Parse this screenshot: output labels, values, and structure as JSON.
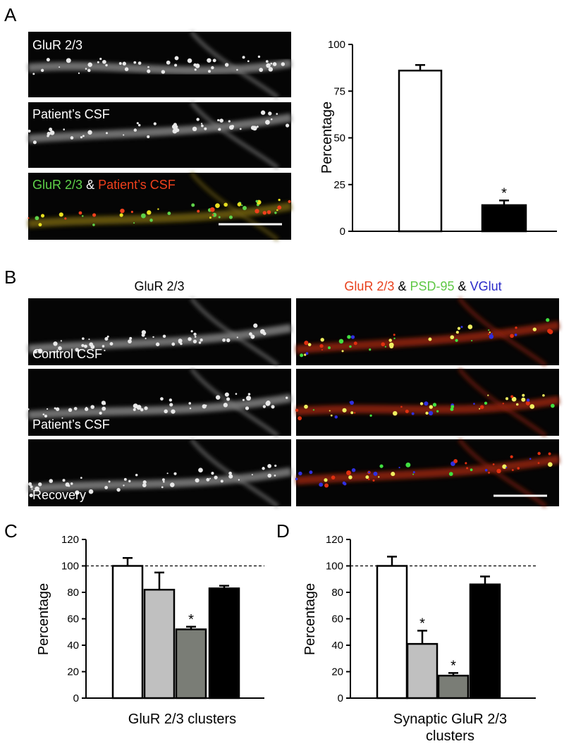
{
  "panel_labels": [
    "A",
    "B",
    "C",
    "D"
  ],
  "panel_a": {
    "images": [
      "GluR 2/3",
      "Patient’s CSF"
    ],
    "merge": [
      "GluR 2/3",
      "&",
      "Patient’s CSF"
    ]
  },
  "panel_b": {
    "left_header": "GluR 2/3",
    "right_header": [
      "GluR 2/3",
      "&",
      "PSD-95",
      "&",
      "VGlut"
    ],
    "rows": [
      "Control CSF",
      "Patient’s CSF",
      "Recovery"
    ]
  },
  "chart_data": [
    {
      "type": "bar",
      "ylabel": "Percentage",
      "categories": [
        null,
        null
      ],
      "values": [
        86,
        14
      ],
      "errors": [
        3,
        2.5
      ],
      "colors": [
        "#ffffff",
        "#000000"
      ],
      "annotations": [
        null,
        "*"
      ],
      "ylim": [
        0,
        100
      ],
      "yticks": [
        0,
        25,
        50,
        75,
        100
      ]
    },
    {
      "type": "bar",
      "ylabel": "Percentage",
      "xlabel": [
        "GluR 2/3 clusters"
      ],
      "categories": [
        null,
        null,
        null,
        null
      ],
      "values": [
        100,
        82,
        52,
        83
      ],
      "errors": [
        6,
        13,
        2,
        2
      ],
      "colors": [
        "#ffffff",
        "#c0c0c0",
        "#7a7d76",
        "#000000"
      ],
      "annotations": [
        null,
        null,
        "*",
        null
      ],
      "reference_line": 100,
      "ylim": [
        0,
        120
      ],
      "yticks": [
        0,
        20,
        40,
        60,
        80,
        100,
        120
      ]
    },
    {
      "type": "bar",
      "ylabel": "Percentage",
      "xlabel": [
        "Synaptic GluR 2/3",
        "clusters"
      ],
      "categories": [
        null,
        null,
        null,
        null
      ],
      "values": [
        100,
        41,
        17,
        86
      ],
      "errors": [
        7,
        10,
        2,
        6
      ],
      "colors": [
        "#ffffff",
        "#c0c0c0",
        "#7a7d76",
        "#000000"
      ],
      "annotations": [
        null,
        "*",
        "*",
        null
      ],
      "reference_line": 100,
      "ylim": [
        0,
        120
      ],
      "yticks": [
        0,
        20,
        40,
        60,
        80,
        100,
        120
      ]
    }
  ]
}
